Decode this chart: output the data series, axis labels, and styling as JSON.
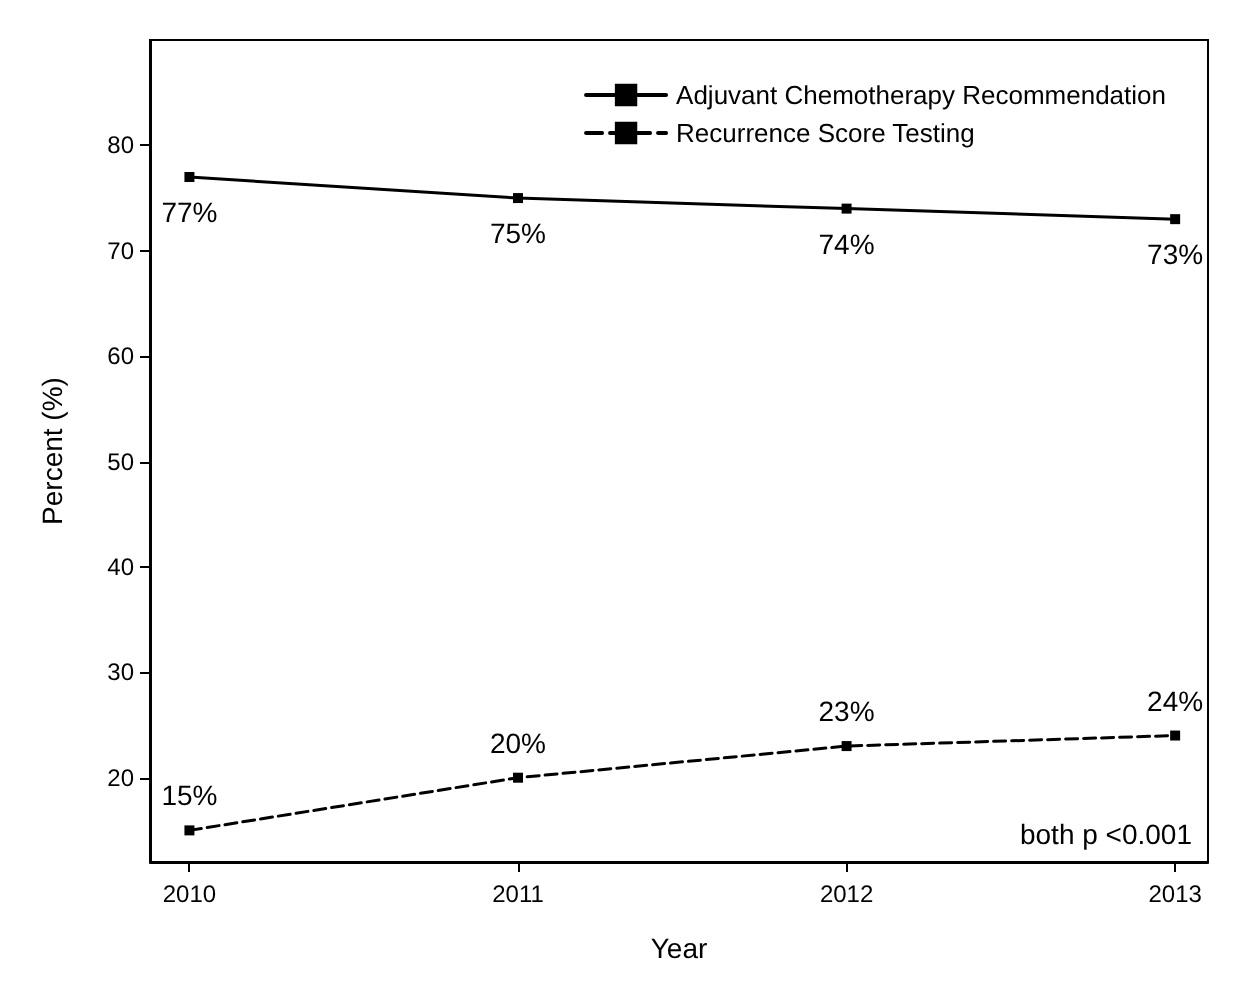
{
  "chart_data": {
    "type": "line",
    "xlabel": "Year",
    "ylabel": "Percent (%)",
    "x": [
      2010,
      2011,
      2012,
      2013
    ],
    "xlim": [
      2009.88,
      2013.1
    ],
    "xticks": [
      2010,
      2011,
      2012,
      2013
    ],
    "ylim": [
      12,
      90
    ],
    "yticks": [
      20,
      30,
      40,
      50,
      60,
      70,
      80
    ],
    "series": [
      {
        "name": "Adjuvant Chemotherapy Recommendation",
        "color": "#000000",
        "values": [
          77,
          75,
          74,
          73
        ],
        "value_labels": [
          "77%",
          "75%",
          "74%",
          "73%"
        ],
        "line_style": "solid"
      },
      {
        "name": "Recurrence Score Testing",
        "color": "#000000",
        "values": [
          15,
          20,
          23,
          24
        ],
        "value_labels": [
          "15%",
          "20%",
          "23%",
          "24%"
        ],
        "line_style": "dashed"
      }
    ],
    "marker": "square",
    "grid": false,
    "legend": "top right",
    "annotations": [
      "both p <0.001"
    ]
  }
}
